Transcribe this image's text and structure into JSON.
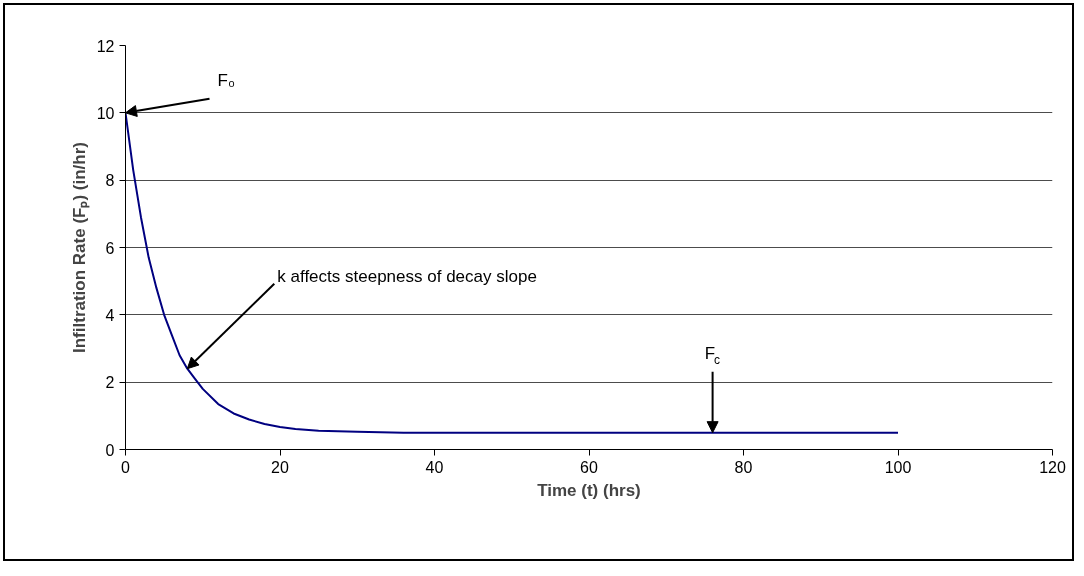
{
  "chart_data": {
    "type": "line",
    "xlabel": "Time (t) (hrs)",
    "ylabel": "Infiltration Rate (Fₚ) (in/hr)",
    "x": [
      0,
      1,
      2,
      3,
      4,
      5,
      6,
      7,
      8,
      9,
      10,
      12,
      14,
      16,
      18,
      20,
      22,
      25,
      30,
      36,
      50,
      70,
      100
    ],
    "series": [
      {
        "color": "#000080",
        "values": [
          10,
          8.3,
          6.9,
          5.7,
          4.8,
          4.0,
          3.4,
          2.8,
          2.4,
          2.1,
          1.8,
          1.35,
          1.07,
          0.89,
          0.76,
          0.67,
          0.61,
          0.56,
          0.53,
          0.5,
          0.5,
          0.5,
          0.5
        ]
      }
    ],
    "xlim": [
      0,
      120
    ],
    "xticks": [
      0,
      20,
      40,
      60,
      80,
      100,
      120
    ],
    "ylim": [
      0,
      12
    ],
    "yticks": [
      0,
      2,
      4,
      6,
      8,
      10,
      12
    ],
    "grid": "y",
    "marker": "none",
    "line_style": "solid",
    "annotations": [
      {
        "text": "F₀",
        "x": 0,
        "y": 10
      },
      {
        "text": "k affects steepness of decay slope",
        "x": 8,
        "y": 2.4
      },
      {
        "text": "F$_{c}$",
        "x": 76,
        "y": 0.5
      }
    ]
  }
}
